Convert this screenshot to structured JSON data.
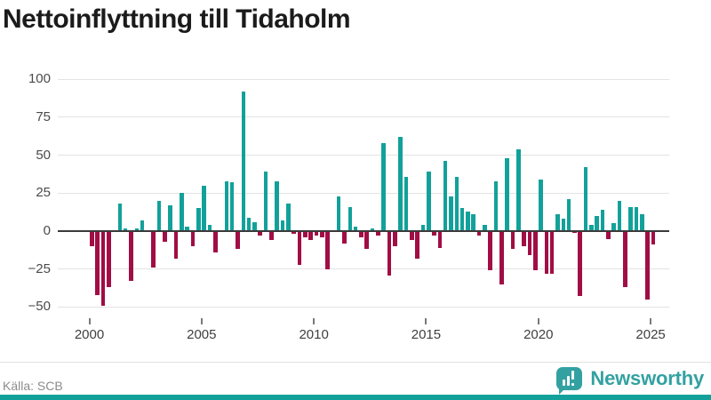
{
  "title": "Nettoinflyttning till Tidaholm",
  "source": {
    "label": "Källa: SCB"
  },
  "brand": {
    "name": "Newsworthy"
  },
  "colors": {
    "positive": "#12a19a",
    "negative": "#a10d44",
    "gridline": "#e3e3e3",
    "zero_line": "#3a3a3a",
    "brand_teal": "#33a1a1"
  },
  "chart_data": {
    "type": "bar",
    "title": "Nettoinflyttning till Tidaholm",
    "xlabel": "",
    "ylabel": "",
    "frequency": "quarterly",
    "start_year": 2000,
    "start_quarter": 1,
    "x_ticks": [
      2000,
      2005,
      2010,
      2015,
      2020,
      2025
    ],
    "y_ticks": [
      100,
      75,
      50,
      25,
      0,
      -25,
      -50
    ],
    "ylim": [
      -56,
      111
    ],
    "grid": true,
    "legend": "none",
    "values": [
      -10,
      -42,
      -49,
      -37,
      0,
      18,
      2,
      -33,
      2,
      7,
      0,
      -24,
      20,
      -7,
      17,
      -18,
      25,
      3,
      -10,
      15,
      30,
      4,
      -14,
      0,
      33,
      32,
      -12,
      92,
      9,
      6,
      -3,
      39,
      -6,
      33,
      7,
      18,
      -2,
      -22,
      -4,
      -6,
      -3,
      -4,
      -25,
      0,
      23,
      -8,
      16,
      3,
      -4,
      -12,
      2,
      -3,
      58,
      -29,
      -10,
      62,
      36,
      -6,
      -18,
      4,
      39,
      -3,
      -11,
      46,
      23,
      36,
      15,
      13,
      11,
      -3,
      4,
      -26,
      33,
      -35,
      48,
      -12,
      54,
      -10,
      -16,
      -26,
      34,
      -28,
      -28,
      11,
      8,
      21,
      -1,
      -43,
      42,
      4,
      10,
      14,
      -5,
      5,
      20,
      -37,
      16,
      16,
      11,
      -45,
      -9
    ]
  }
}
